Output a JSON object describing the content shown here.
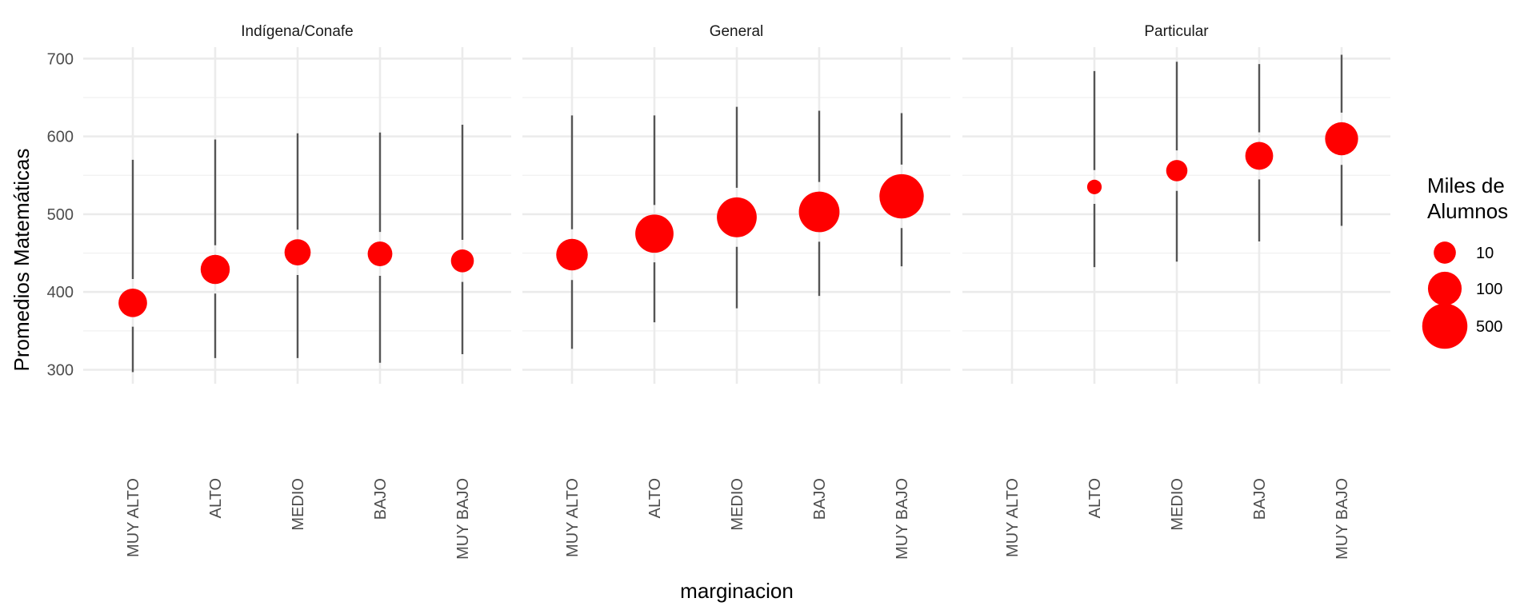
{
  "chart_data": {
    "type": "scatter",
    "xlabel": "marginacion",
    "ylabel": "Promedios Matemáticas",
    "categories": [
      "MUY ALTO",
      "ALTO",
      "MEDIO",
      "BAJO",
      "MUY BAJO"
    ],
    "ylim": [
      282,
      724
    ],
    "yticks": [
      300,
      400,
      500,
      600,
      700
    ],
    "grid": true,
    "point_color": "#FF0000",
    "range_color": "#555555",
    "panels": [
      {
        "name": "Indígena/Conafe",
        "points": [
          {
            "x": "MUY ALTO",
            "y": 386,
            "ymin": 297,
            "ymax": 570,
            "alumnos": 40
          },
          {
            "x": "ALTO",
            "y": 429,
            "ymin": 315,
            "ymax": 596,
            "alumnos": 45
          },
          {
            "x": "MEDIO",
            "y": 451,
            "ymin": 315,
            "ymax": 604,
            "alumnos": 25
          },
          {
            "x": "BAJO",
            "y": 449,
            "ymin": 309,
            "ymax": 605,
            "alumnos": 18
          },
          {
            "x": "MUY BAJO",
            "y": 440,
            "ymin": 320,
            "ymax": 615,
            "alumnos": 12
          }
        ]
      },
      {
        "name": "General",
        "points": [
          {
            "x": "MUY ALTO",
            "y": 448,
            "ymin": 327,
            "ymax": 627,
            "alumnos": 70
          },
          {
            "x": "ALTO",
            "y": 475,
            "ymin": 361,
            "ymax": 627,
            "alumnos": 200
          },
          {
            "x": "MEDIO",
            "y": 496,
            "ymin": 379,
            "ymax": 638,
            "alumnos": 250
          },
          {
            "x": "BAJO",
            "y": 503,
            "ymin": 395,
            "ymax": 633,
            "alumnos": 280
          },
          {
            "x": "MUY BAJO",
            "y": 523,
            "ymin": 433,
            "ymax": 630,
            "alumnos": 450
          }
        ]
      },
      {
        "name": "Particular",
        "points": [
          {
            "x": "ALTO",
            "y": 535,
            "ymin": 432,
            "ymax": 684,
            "alumnos": 1
          },
          {
            "x": "MEDIO",
            "y": 556,
            "ymin": 439,
            "ymax": 696,
            "alumnos": 8
          },
          {
            "x": "BAJO",
            "y": 575,
            "ymin": 465,
            "ymax": 693,
            "alumnos": 35
          },
          {
            "x": "MUY BAJO",
            "y": 597,
            "ymin": 485,
            "ymax": 705,
            "alumnos": 90
          }
        ]
      }
    ],
    "legend": {
      "title_line1": "Miles de",
      "title_line2": "Alumnos",
      "placement": "right",
      "entries": [
        {
          "label": "10",
          "value": 10
        },
        {
          "label": "100",
          "value": 100
        },
        {
          "label": "500",
          "value": 500
        }
      ]
    }
  }
}
